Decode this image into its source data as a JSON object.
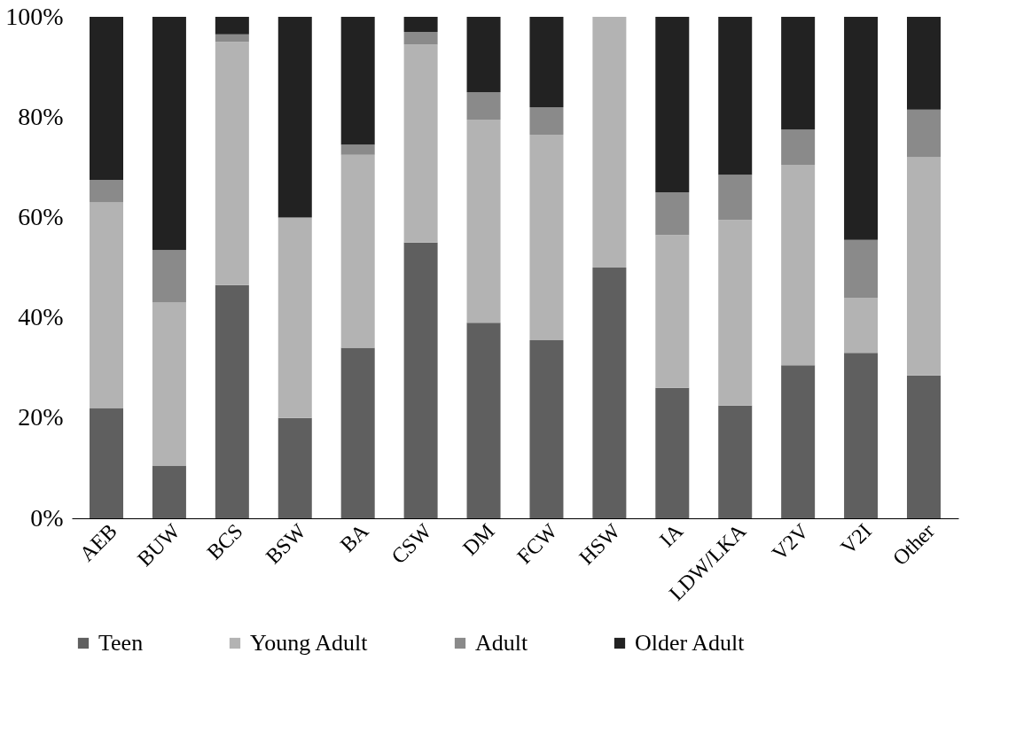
{
  "chart_data": {
    "type": "bar",
    "stacked": true,
    "categories": [
      "AEB",
      "BUW",
      "BCS",
      "BSW",
      "BA",
      "CSW",
      "DM",
      "FCW",
      "HSW",
      "IA",
      "LDW/LKA",
      "V2V",
      "V2I",
      "Other"
    ],
    "series": [
      {
        "name": "Teen",
        "color": "#5f5f5f",
        "values": [
          22,
          10.5,
          46.5,
          20,
          34,
          55,
          39,
          35.5,
          50,
          26,
          22.5,
          30.5,
          33,
          28.5
        ]
      },
      {
        "name": "Young Adult",
        "color": "#b3b3b3",
        "values": [
          41,
          32.5,
          48.5,
          40,
          38.5,
          39.5,
          40.5,
          41,
          50,
          30.5,
          37,
          40,
          11,
          43.5
        ]
      },
      {
        "name": "Adult",
        "color": "#8a8a8a",
        "values": [
          4.5,
          10.5,
          1.5,
          0,
          2,
          2.5,
          5.5,
          5.5,
          0,
          8.5,
          9,
          7,
          11.5,
          9.5
        ]
      },
      {
        "name": "Older Adult",
        "color": "#222222",
        "values": [
          32.5,
          46.5,
          3.5,
          40,
          25.5,
          3,
          15,
          18,
          0,
          35,
          31.5,
          22.5,
          44.5,
          18.5
        ]
      }
    ],
    "ylim": [
      0,
      100
    ],
    "yticks": [
      {
        "value": 0,
        "label": "0%"
      },
      {
        "value": 20,
        "label": "20%"
      },
      {
        "value": 40,
        "label": "40%"
      },
      {
        "value": 60,
        "label": "60%"
      },
      {
        "value": 80,
        "label": "80%"
      },
      {
        "value": 100,
        "label": "100%"
      }
    ],
    "grid": false,
    "legend": "bottom"
  }
}
